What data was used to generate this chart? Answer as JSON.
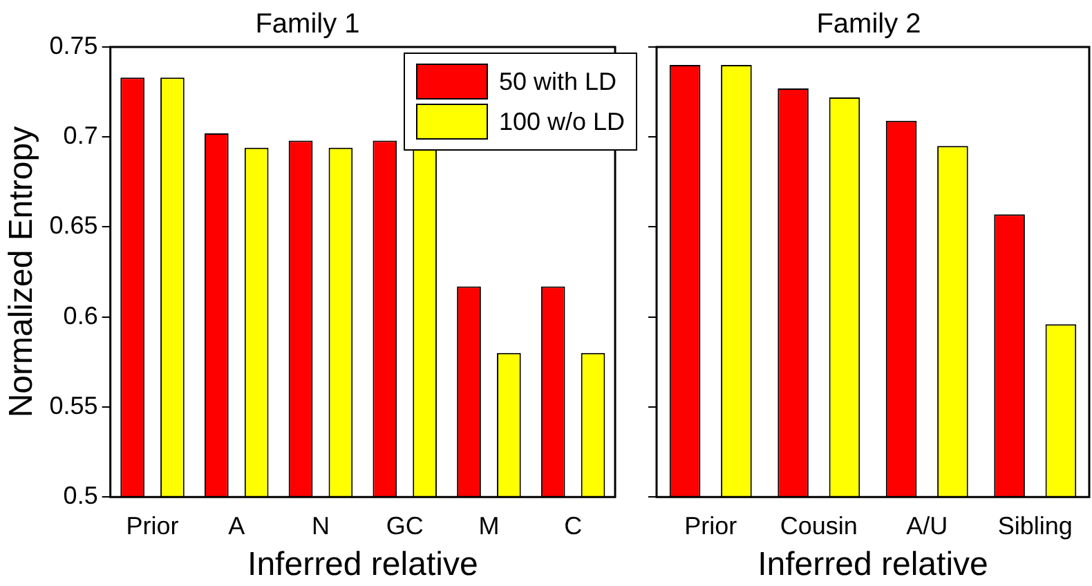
{
  "chart_data": [
    {
      "type": "bar",
      "title": "Family 1",
      "xlabel": "Inferred relative",
      "ylabel": "Normalized Entropy",
      "categories": [
        "Prior",
        "A",
        "N",
        "GC",
        "M",
        "C"
      ],
      "series": [
        {
          "name": "50 with LD",
          "color": "#ff0000",
          "values": [
            0.733,
            0.702,
            0.698,
            0.698,
            0.617,
            0.617
          ]
        },
        {
          "name": "100 w/o LD",
          "color": "#ffff00",
          "values": [
            0.733,
            0.694,
            0.694,
            0.694,
            0.58,
            0.58
          ]
        }
      ],
      "ylim": [
        0.5,
        0.75
      ],
      "yticks": [
        0.5,
        0.55,
        0.6,
        0.65,
        0.7,
        0.75
      ],
      "grid": false,
      "legend": "top right"
    },
    {
      "type": "bar",
      "title": "Family 2",
      "xlabel": "Inferred relative",
      "categories": [
        "Prior",
        "Cousin",
        "A/U",
        "Sibling"
      ],
      "series": [
        {
          "color": "#ff0000",
          "values": [
            0.74,
            0.727,
            0.709,
            0.657
          ]
        },
        {
          "color": "#ffff00",
          "values": [
            0.74,
            0.722,
            0.695,
            0.596
          ]
        }
      ],
      "ylim": [
        0.5,
        0.75
      ],
      "yticks": [
        0.5,
        0.55,
        0.6,
        0.65,
        0.7,
        0.75
      ],
      "grid": false,
      "tick_labels": "x"
    }
  ]
}
